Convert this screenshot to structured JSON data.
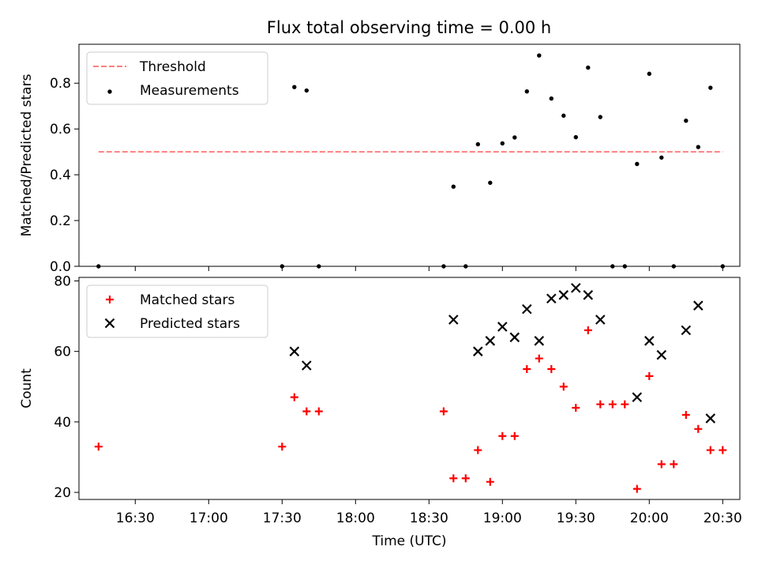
{
  "figure": {
    "title": "Flux total observing time = 0.00 h"
  },
  "chart_data": [
    {
      "panel": "top",
      "type": "scatter",
      "ylabel": "Matched/Predicted stars",
      "ylim": [
        0,
        0.97
      ],
      "yticks": [
        0.0,
        0.2,
        0.4,
        0.6,
        0.8
      ],
      "ytick_labels": [
        "0.0",
        "0.2",
        "0.4",
        "0.6",
        "0.8"
      ],
      "xlim": [
        "16:07",
        "20:37"
      ],
      "legend_placement": "top-left",
      "threshold": {
        "name": "Threshold",
        "value": 0.5,
        "x_start": "16:15",
        "x_end": "20:30",
        "color": "#ff7f7f"
      },
      "series": [
        {
          "name": "Measurements",
          "color": "#000000",
          "points": [
            {
              "x": "16:15",
              "y": 0.0
            },
            {
              "x": "17:30",
              "y": 0.0
            },
            {
              "x": "17:35",
              "y": 0.783
            },
            {
              "x": "17:40",
              "y": 0.768
            },
            {
              "x": "17:45",
              "y": 0.0
            },
            {
              "x": "18:36",
              "y": 0.0
            },
            {
              "x": "18:40",
              "y": 0.348
            },
            {
              "x": "18:45",
              "y": 0.0
            },
            {
              "x": "18:50",
              "y": 0.533
            },
            {
              "x": "18:55",
              "y": 0.365
            },
            {
              "x": "19:00",
              "y": 0.537
            },
            {
              "x": "19:05",
              "y": 0.563
            },
            {
              "x": "19:10",
              "y": 0.764
            },
            {
              "x": "19:15",
              "y": 0.921
            },
            {
              "x": "19:20",
              "y": 0.733
            },
            {
              "x": "19:25",
              "y": 0.658
            },
            {
              "x": "19:30",
              "y": 0.564
            },
            {
              "x": "19:35",
              "y": 0.868
            },
            {
              "x": "19:40",
              "y": 0.652
            },
            {
              "x": "19:45",
              "y": 0.0
            },
            {
              "x": "19:50",
              "y": 0.0
            },
            {
              "x": "19:55",
              "y": 0.447
            },
            {
              "x": "20:00",
              "y": 0.841
            },
            {
              "x": "20:05",
              "y": 0.475
            },
            {
              "x": "20:10",
              "y": 0.0
            },
            {
              "x": "20:15",
              "y": 0.636
            },
            {
              "x": "20:20",
              "y": 0.521
            },
            {
              "x": "20:25",
              "y": 0.78
            },
            {
              "x": "20:30",
              "y": 0.0
            }
          ]
        }
      ]
    },
    {
      "panel": "bottom",
      "type": "scatter",
      "xlabel": "Time (UTC)",
      "ylabel": "Count",
      "ylim": [
        18,
        81
      ],
      "yticks": [
        20,
        40,
        60,
        80
      ],
      "ytick_labels": [
        "20",
        "40",
        "60",
        "80"
      ],
      "xlim": [
        "16:07",
        "20:37"
      ],
      "xticks": [
        "16:30",
        "17:00",
        "17:30",
        "18:00",
        "18:30",
        "19:00",
        "19:30",
        "20:00",
        "20:30"
      ],
      "legend_placement": "top-left",
      "series": [
        {
          "name": "Matched stars",
          "marker": "plus",
          "color": "#ff0000",
          "points": [
            {
              "x": "16:15",
              "y": 33
            },
            {
              "x": "17:30",
              "y": 33
            },
            {
              "x": "17:35",
              "y": 47
            },
            {
              "x": "17:40",
              "y": 43
            },
            {
              "x": "17:45",
              "y": 43
            },
            {
              "x": "18:36",
              "y": 43
            },
            {
              "x": "18:40",
              "y": 24
            },
            {
              "x": "18:45",
              "y": 24
            },
            {
              "x": "18:50",
              "y": 32
            },
            {
              "x": "18:55",
              "y": 23
            },
            {
              "x": "19:00",
              "y": 36
            },
            {
              "x": "19:05",
              "y": 36
            },
            {
              "x": "19:10",
              "y": 55
            },
            {
              "x": "19:15",
              "y": 58
            },
            {
              "x": "19:20",
              "y": 55
            },
            {
              "x": "19:25",
              "y": 50
            },
            {
              "x": "19:30",
              "y": 44
            },
            {
              "x": "19:35",
              "y": 66
            },
            {
              "x": "19:40",
              "y": 45
            },
            {
              "x": "19:45",
              "y": 45
            },
            {
              "x": "19:50",
              "y": 45
            },
            {
              "x": "19:55",
              "y": 21
            },
            {
              "x": "20:00",
              "y": 53
            },
            {
              "x": "20:05",
              "y": 28
            },
            {
              "x": "20:10",
              "y": 28
            },
            {
              "x": "20:15",
              "y": 42
            },
            {
              "x": "20:20",
              "y": 38
            },
            {
              "x": "20:25",
              "y": 32
            },
            {
              "x": "20:30",
              "y": 32
            }
          ]
        },
        {
          "name": "Predicted stars",
          "marker": "x",
          "color": "#000000",
          "points": [
            {
              "x": "17:35",
              "y": 60
            },
            {
              "x": "17:40",
              "y": 56
            },
            {
              "x": "18:40",
              "y": 69
            },
            {
              "x": "18:50",
              "y": 60
            },
            {
              "x": "18:55",
              "y": 63
            },
            {
              "x": "19:00",
              "y": 67
            },
            {
              "x": "19:05",
              "y": 64
            },
            {
              "x": "19:10",
              "y": 72
            },
            {
              "x": "19:15",
              "y": 63
            },
            {
              "x": "19:20",
              "y": 75
            },
            {
              "x": "19:25",
              "y": 76
            },
            {
              "x": "19:30",
              "y": 78
            },
            {
              "x": "19:35",
              "y": 76
            },
            {
              "x": "19:40",
              "y": 69
            },
            {
              "x": "19:55",
              "y": 47
            },
            {
              "x": "20:00",
              "y": 63
            },
            {
              "x": "20:05",
              "y": 59
            },
            {
              "x": "20:15",
              "y": 66
            },
            {
              "x": "20:20",
              "y": 73
            },
            {
              "x": "20:25",
              "y": 41
            }
          ]
        }
      ]
    }
  ]
}
